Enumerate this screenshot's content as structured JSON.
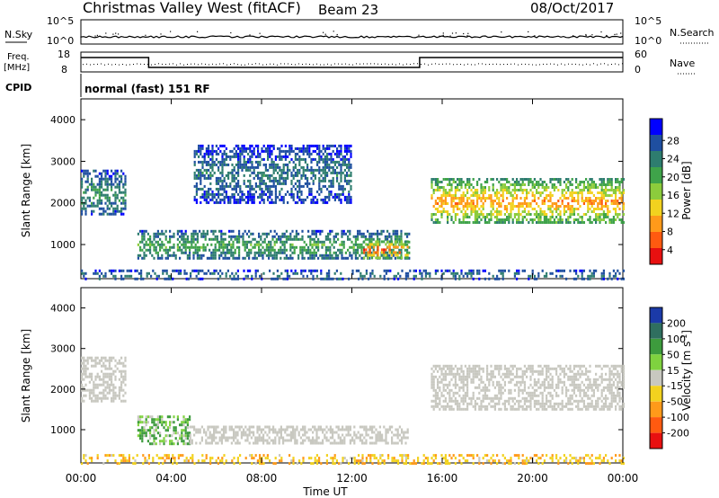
{
  "header": {
    "station": "Christmas Valley West (fitACF)",
    "beam": "Beam 23",
    "date": "08/Oct/2017"
  },
  "top_panels": {
    "nsky_label": "N.Sky",
    "nsky_ticks": [
      "10^5",
      "10^0"
    ],
    "nsearch_label": "N.Search",
    "nsearch_ticks": [
      "10^5",
      "10^0"
    ],
    "freq_label_1": "Freq.",
    "freq_label_2": "[MHz]",
    "freq_ticks": [
      "18",
      "8"
    ],
    "nave_label": "Nave",
    "nave_ticks": [
      "60",
      "0"
    ],
    "cpid_label": "CPID",
    "cpid_text": "normal (fast) 151 RF"
  },
  "colors": {
    "power_scale": [
      "#0000ff",
      "#1f4fa0",
      "#2e7d6f",
      "#3fa34a",
      "#8ccc3c",
      "#f2d21f",
      "#ff9a1a",
      "#ff5a10",
      "#e81010"
    ],
    "velocity_scale": [
      "#1b3aa8",
      "#2f6f5f",
      "#3d9b3d",
      "#7fd23f",
      "#c8c8c0",
      "#f2d21f",
      "#ff9a1a",
      "#ff5a10",
      "#e81010"
    ]
  },
  "chart_data": [
    {
      "type": "heatmap",
      "panel": "power",
      "ylabel": "Slant Range [km]",
      "yticks": [
        "4000",
        "3000",
        "2000",
        "1000"
      ],
      "colorbar_label": "Power [dB]",
      "colorbar_ticks": [
        "28",
        "24",
        "20",
        "16",
        "12",
        "8",
        "4"
      ],
      "xlabel": "Time UT",
      "xticks": [
        "00:00",
        "04:00",
        "08:00",
        "12:00",
        "16:00",
        "20:00",
        "00:00"
      ],
      "xlim_hours": [
        0,
        24
      ],
      "ylim_km": [
        180,
        4500
      ],
      "regions": [
        {
          "name": "morning E-region echoes",
          "t": [
            2.5,
            14.5
          ],
          "r": [
            650,
            1350
          ],
          "level": 12
        },
        {
          "name": "late morning strong patch",
          "t": [
            12.5,
            14.5
          ],
          "r": [
            700,
            1100
          ],
          "level": 26
        },
        {
          "name": "early far-range echoes",
          "t": [
            0.0,
            2.0
          ],
          "r": [
            1700,
            2800
          ],
          "level": 10
        },
        {
          "name": "afternoon F-region band",
          "t": [
            15.5,
            24.0
          ],
          "r": [
            1500,
            2600
          ],
          "level": 22
        },
        {
          "name": "scattered far range",
          "t": [
            5.0,
            12.0
          ],
          "r": [
            2000,
            3400
          ],
          "level": 8
        },
        {
          "name": "near range clutter",
          "t": [
            0.0,
            24.0
          ],
          "r": [
            180,
            400
          ],
          "level": 8
        }
      ]
    },
    {
      "type": "heatmap",
      "panel": "velocity",
      "ylabel": "Slant Range [km]",
      "yticks": [
        "4000",
        "3000",
        "2000",
        "1000"
      ],
      "colorbar_label": "Velocity [m s^-1]",
      "colorbar_ticks": [
        "200",
        "100",
        "50",
        "15",
        "-15",
        "-50",
        "-100",
        "-200"
      ],
      "xlabel": "Time UT",
      "xticks": [
        "00:00",
        "04:00",
        "08:00",
        "12:00",
        "16:00",
        "20:00",
        "00:00"
      ],
      "xlim_hours": [
        0,
        24
      ],
      "ylim_km": [
        180,
        4500
      ],
      "regions": [
        {
          "name": "morning echoes",
          "t": [
            2.5,
            4.8
          ],
          "r": [
            650,
            1350
          ],
          "level": 30
        },
        {
          "name": "ground scatter morning",
          "t": [
            4.8,
            14.5
          ],
          "r": [
            650,
            1100
          ],
          "level": 0
        },
        {
          "name": "afternoon ground scatter",
          "t": [
            15.5,
            24.0
          ],
          "r": [
            1500,
            2600
          ],
          "level": 0
        },
        {
          "name": "early far-range",
          "t": [
            0.0,
            2.0
          ],
          "r": [
            1700,
            2800
          ],
          "level": 0
        },
        {
          "name": "near range mixed",
          "t": [
            0.0,
            24.0
          ],
          "r": [
            180,
            400
          ],
          "level": -40
        }
      ]
    }
  ]
}
